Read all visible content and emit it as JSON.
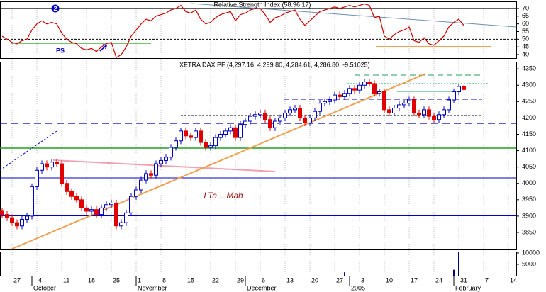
{
  "chart_data": [
    {
      "type": "line",
      "title": "Relative Strength Index (58.96 17)",
      "ylim": [
        37.7,
        74.6
      ],
      "yticks": [
        40,
        45,
        50,
        55,
        60,
        65,
        70
      ],
      "ref_lines": [
        70,
        50
      ],
      "series": [
        {
          "name": "RSI",
          "color": "#d00000",
          "values": [
            52,
            50,
            48,
            47,
            49,
            50,
            56,
            60,
            62,
            60,
            61,
            60,
            54,
            50,
            48,
            47,
            44,
            43,
            44,
            42,
            45,
            47,
            48,
            38,
            40,
            45,
            52,
            56,
            60,
            63,
            62,
            65,
            66,
            67,
            69,
            70,
            72,
            68,
            67,
            69,
            63,
            60,
            61,
            64,
            66,
            67,
            68,
            62,
            66,
            67,
            69,
            70,
            70,
            66,
            61,
            64,
            65,
            67,
            68,
            69,
            63,
            59,
            62,
            65,
            68,
            69,
            70,
            71,
            70,
            71,
            72,
            71,
            72,
            73,
            72,
            64,
            65,
            52,
            50,
            53,
            55,
            56,
            58,
            49,
            48,
            51,
            47,
            46,
            49,
            52,
            58,
            61,
            63,
            59
          ]
        }
      ],
      "annotations": [
        {
          "text": "2"
        },
        {
          "text": "PS"
        }
      ]
    },
    {
      "type": "candlestick",
      "title": "XETRA DAX PF (4,297.16, 4,299.80, 4,284.61, 4,286.80, -9.51025)",
      "ylim": [
        3798,
        4372
      ],
      "yticks": [
        {
          "value": 3850,
          "label": "3850"
        },
        {
          "value": 3900,
          "label": "3900"
        },
        {
          "value": 3950,
          "label": "3950"
        },
        {
          "value": 4000,
          "label": "4000"
        },
        {
          "value": 4050,
          "label": "4050"
        },
        {
          "value": 4100,
          "label": "4100"
        },
        {
          "value": 4150,
          "label": "4150"
        },
        {
          "value": 4200,
          "label": "4200"
        },
        {
          "value": 4250,
          "label": "4250"
        },
        {
          "value": 4300,
          "label": "4300"
        },
        {
          "value": 4350,
          "label": "4350"
        }
      ],
      "up_color": "#0000c0",
      "down_color": "#e00000",
      "series": [
        {
          "name": "XETRA DAX PF",
          "open": [
            3915,
            3905,
            3895,
            3880,
            3870,
            3890,
            3900,
            3990,
            4040,
            4060,
            4050,
            4065,
            4060,
            4000,
            3975,
            3960,
            3950,
            3925,
            3915,
            3920,
            3905,
            3925,
            3935,
            3940,
            3870,
            3880,
            3910,
            3960,
            3980,
            4010,
            4030,
            4025,
            4060,
            4070,
            4080,
            4110,
            4130,
            4160,
            4145,
            4140,
            4160,
            4125,
            4110,
            4115,
            4140,
            4150,
            4160,
            4170,
            4140,
            4180,
            4190,
            4205,
            4210,
            4215,
            4195,
            4170,
            4190,
            4200,
            4215,
            4225,
            4230,
            4200,
            4185,
            4200,
            4220,
            4245,
            4250,
            4255,
            4270,
            4265,
            4275,
            4290,
            4285,
            4300,
            4310,
            4305,
            4275,
            4280,
            4225,
            4215,
            4230,
            4240,
            4245,
            4255,
            4215,
            4210,
            4225,
            4205,
            4195,
            4210,
            4225,
            4255,
            4280,
            4297.16
          ],
          "high": [
            3925,
            3915,
            3905,
            3890,
            3900,
            3910,
            4000,
            4050,
            4070,
            4070,
            4075,
            4075,
            4070,
            4010,
            3985,
            3970,
            3960,
            3935,
            3930,
            3930,
            3935,
            3945,
            3950,
            3950,
            3890,
            3920,
            3970,
            3990,
            4020,
            4040,
            4040,
            4070,
            4080,
            4090,
            4120,
            4140,
            4170,
            4170,
            4155,
            4170,
            4170,
            4135,
            4125,
            4150,
            4160,
            4170,
            4180,
            4180,
            4190,
            4200,
            4215,
            4220,
            4225,
            4225,
            4205,
            4200,
            4210,
            4225,
            4235,
            4240,
            4240,
            4210,
            4210,
            4230,
            4255,
            4260,
            4265,
            4280,
            4280,
            4285,
            4300,
            4300,
            4310,
            4320,
            4320,
            4315,
            4290,
            4290,
            4235,
            4240,
            4250,
            4255,
            4265,
            4265,
            4225,
            4235,
            4235,
            4215,
            4220,
            4235,
            4265,
            4290,
            4305,
            4299.8
          ],
          "low": [
            3895,
            3885,
            3870,
            3860,
            3860,
            3880,
            3890,
            3980,
            4030,
            4040,
            4040,
            4050,
            3990,
            3965,
            3950,
            3940,
            3915,
            3905,
            3905,
            3895,
            3895,
            3915,
            3925,
            3860,
            3860,
            3870,
            3900,
            3950,
            3970,
            4000,
            4015,
            4015,
            4050,
            4060,
            4070,
            4100,
            4120,
            4135,
            4130,
            4130,
            4115,
            4100,
            4100,
            4105,
            4130,
            4140,
            4150,
            4130,
            4130,
            4170,
            4180,
            4195,
            4200,
            4185,
            4160,
            4160,
            4180,
            4190,
            4205,
            4215,
            4190,
            4175,
            4175,
            4190,
            4210,
            4235,
            4240,
            4245,
            4255,
            4255,
            4265,
            4275,
            4275,
            4290,
            4295,
            4265,
            4265,
            4215,
            4205,
            4205,
            4220,
            4230,
            4235,
            4205,
            4200,
            4200,
            4195,
            4185,
            4185,
            4200,
            4215,
            4245,
            4270,
            4284.61
          ],
          "close": [
            3905,
            3895,
            3880,
            3870,
            3890,
            3900,
            3990,
            4040,
            4060,
            4050,
            4065,
            4060,
            4000,
            3975,
            3960,
            3950,
            3925,
            3915,
            3920,
            3905,
            3925,
            3935,
            3940,
            3870,
            3880,
            3910,
            3960,
            3980,
            4010,
            4030,
            4025,
            4060,
            4070,
            4080,
            4110,
            4130,
            4160,
            4145,
            4140,
            4160,
            4125,
            4110,
            4115,
            4140,
            4150,
            4160,
            4170,
            4140,
            4180,
            4190,
            4205,
            4210,
            4215,
            4195,
            4170,
            4190,
            4200,
            4215,
            4225,
            4230,
            4200,
            4185,
            4200,
            4220,
            4245,
            4250,
            4255,
            4270,
            4265,
            4275,
            4290,
            4285,
            4300,
            4310,
            4305,
            4275,
            4280,
            4225,
            4215,
            4230,
            4240,
            4245,
            4255,
            4215,
            4210,
            4225,
            4205,
            4195,
            4210,
            4225,
            4255,
            4280,
            4296.31,
            4286.8
          ]
        }
      ],
      "annotations": [
        {
          "text": "LTa....Mah"
        }
      ]
    },
    {
      "type": "bar",
      "xlim": [
        -0.43,
        103.57
      ],
      "ylim": [
        0,
        10600
      ],
      "yticks": [
        5000,
        10000
      ],
      "color": "#000080",
      "x": [
        69,
        91,
        92
      ],
      "values": [
        1500,
        2600,
        10500
      ],
      "xticks": [
        {
          "value": 2,
          "label": "27"
        },
        {
          "value": 7,
          "label": "4"
        },
        {
          "value": 12,
          "label": "11"
        },
        {
          "value": 17,
          "label": "18"
        },
        {
          "value": 22,
          "label": "25"
        },
        {
          "value": 27,
          "label": "1"
        },
        {
          "value": 32,
          "label": "8"
        },
        {
          "value": 37,
          "label": "15"
        },
        {
          "value": 42,
          "label": "22"
        },
        {
          "value": 47,
          "label": "29"
        },
        {
          "value": 52,
          "label": "6"
        },
        {
          "value": 57,
          "label": "13"
        },
        {
          "value": 62,
          "label": "20"
        },
        {
          "value": 67,
          "label": "27"
        },
        {
          "value": 72,
          "label": "3"
        },
        {
          "value": 77,
          "label": "10"
        },
        {
          "value": 82,
          "label": "17"
        },
        {
          "value": 87,
          "label": "24"
        },
        {
          "value": 92,
          "label": "31"
        },
        {
          "value": 97,
          "label": "7"
        },
        {
          "value": 102,
          "label": "14"
        }
      ],
      "month_ticks": [
        {
          "value": 6,
          "label": "October"
        },
        {
          "value": 27,
          "label": "November"
        },
        {
          "value": 49,
          "label": "December"
        },
        {
          "value": 70,
          "label": "2005"
        },
        {
          "value": 91,
          "label": "February"
        }
      ]
    }
  ]
}
